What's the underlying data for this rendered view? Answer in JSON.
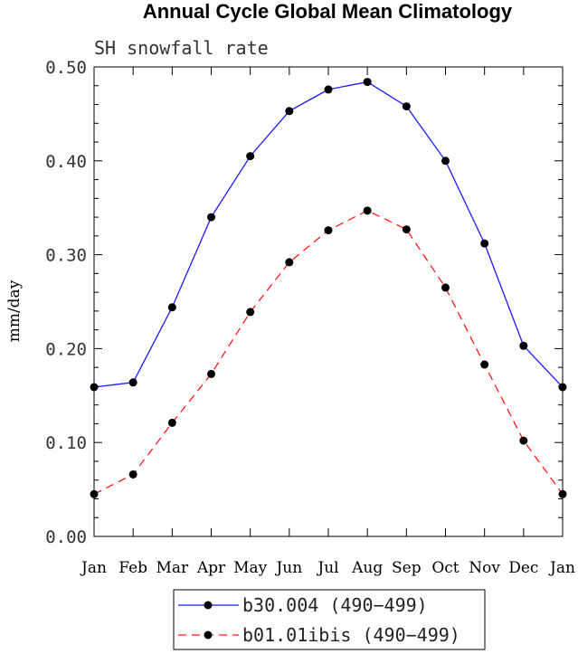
{
  "chart_data": {
    "type": "line",
    "title": "Annual Cycle Global Mean Climatology",
    "subtitle": "SH snowfall rate",
    "xlabel": "",
    "ylabel": "mm/day",
    "ylim": [
      0.0,
      0.5
    ],
    "yticks": [
      "0.00",
      "0.10",
      "0.20",
      "0.30",
      "0.40",
      "0.50"
    ],
    "categories": [
      "Jan",
      "Feb",
      "Mar",
      "Apr",
      "May",
      "Jun",
      "Jul",
      "Aug",
      "Sep",
      "Oct",
      "Nov",
      "Dec",
      "Jan"
    ],
    "series": [
      {
        "name": "b30.004 (490−499)",
        "color": "#1a1aff",
        "dash": "solid",
        "marker": "circle",
        "values": [
          0.159,
          0.164,
          0.244,
          0.34,
          0.405,
          0.453,
          0.476,
          0.484,
          0.458,
          0.4,
          0.312,
          0.203,
          0.159
        ]
      },
      {
        "name": "b01.01ibis (490−499)",
        "color": "#ff1a1a",
        "dash": "dashed",
        "marker": "circle",
        "values": [
          0.045,
          0.066,
          0.121,
          0.173,
          0.239,
          0.292,
          0.326,
          0.347,
          0.327,
          0.265,
          0.183,
          0.102,
          0.045
        ]
      }
    ],
    "legend_position": "bottom-center"
  }
}
